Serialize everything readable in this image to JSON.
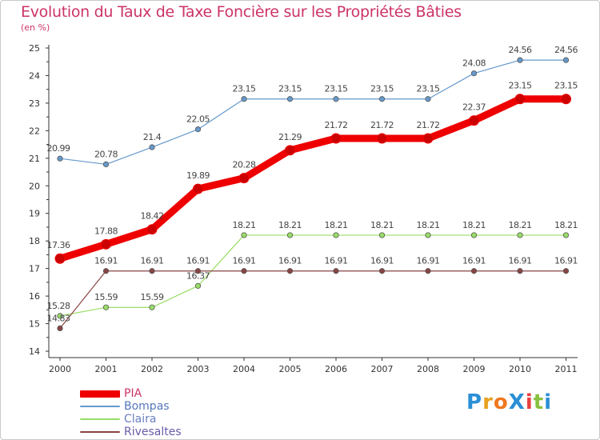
{
  "title": "Evolution du Taux de Taxe Foncière sur les Propriétés Bâties",
  "unit_label": "(en %)",
  "logo": {
    "text": "ProXiti",
    "letters": [
      "P",
      "r",
      "o",
      "X",
      "i",
      "t",
      "i"
    ],
    "colors": [
      "#2a8fd6",
      "#e8a020",
      "#f07820",
      "#2a8fd6",
      "#e84040",
      "#88c040",
      "#2a8fd6"
    ]
  },
  "chart_data": {
    "type": "line",
    "title": "Evolution du Taux de Taxe Foncière sur les Propriétés Bâties",
    "ylabel": "(en %)",
    "x": [
      "2000",
      "2001",
      "2002",
      "2003",
      "2004",
      "2005",
      "2006",
      "2007",
      "2008",
      "2009",
      "2010",
      "2011"
    ],
    "ylim": [
      14,
      25
    ],
    "yticks": [
      "14",
      "15",
      "16",
      "17",
      "18",
      "19",
      "20",
      "21",
      "22",
      "23",
      "24",
      "25"
    ],
    "grid": false,
    "legend_position": "bottom-left",
    "series": [
      {
        "name": "PIA",
        "color": "#ee0000",
        "values": [
          17.36,
          17.88,
          18.42,
          19.89,
          20.28,
          21.29,
          21.72,
          21.72,
          21.72,
          22.37,
          23.15,
          23.15
        ],
        "labels": [
          "17.36",
          "17.88",
          "18.42",
          "19.89",
          "20.28",
          "21.29",
          "21.72",
          "21.72",
          "21.72",
          "22.37",
          "23.15",
          "23.15"
        ]
      },
      {
        "name": "Bompas",
        "color": "#6699cc",
        "values": [
          20.99,
          20.78,
          21.4,
          22.05,
          23.15,
          23.15,
          23.15,
          23.15,
          23.15,
          24.08,
          24.56,
          24.56
        ],
        "labels": [
          "20.99",
          "20.78",
          "21.4",
          "22.05",
          "23.15",
          "23.15",
          "23.15",
          "23.15",
          "23.15",
          "24.08",
          "24.56",
          "24.56"
        ]
      },
      {
        "name": "Claira",
        "color": "#99dd66",
        "values": [
          15.28,
          15.59,
          15.59,
          16.37,
          18.21,
          18.21,
          18.21,
          18.21,
          18.21,
          18.21,
          18.21,
          18.21
        ],
        "labels": [
          "15.28",
          "15.59",
          "15.59",
          "16.37",
          "18.21",
          "18.21",
          "18.21",
          "18.21",
          "18.21",
          "18.21",
          "18.21",
          "18.21"
        ]
      },
      {
        "name": "Rivesaltes",
        "color": "#884444",
        "values": [
          14.83,
          16.91,
          16.91,
          16.91,
          16.91,
          16.91,
          16.91,
          16.91,
          16.91,
          16.91,
          16.91,
          16.91
        ],
        "labels": [
          "14.83",
          "16.91",
          "16.91",
          "16.91",
          "16.91",
          "16.91",
          "16.91",
          "16.91",
          "16.91",
          "16.91",
          "16.91",
          "16.91"
        ]
      }
    ]
  }
}
